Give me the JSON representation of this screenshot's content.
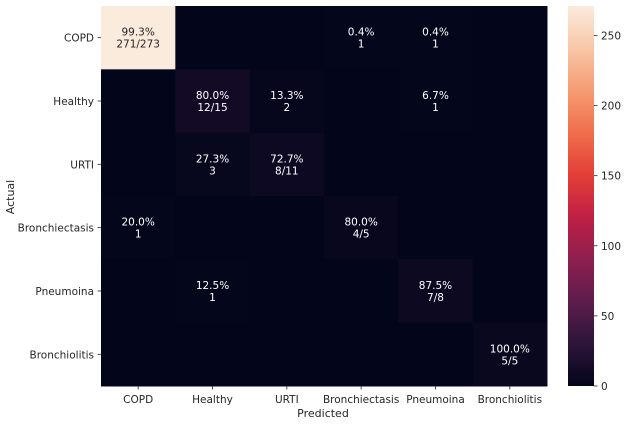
{
  "chart_data": {
    "type": "heatmap",
    "title": "",
    "xlabel": "Predicted",
    "ylabel": "Actual",
    "x_categories": [
      "COPD",
      "Healthy",
      "URTI",
      "Bronchiectasis",
      "Pneumoina",
      "Bronchiolitis"
    ],
    "y_categories": [
      "COPD",
      "Healthy",
      "URTI",
      "Bronchiectasis",
      "Pneumoina",
      "Bronchiolitis"
    ],
    "counts": [
      [
        271,
        0,
        0,
        1,
        1,
        0
      ],
      [
        0,
        12,
        2,
        0,
        1,
        0
      ],
      [
        0,
        3,
        8,
        0,
        0,
        0
      ],
      [
        1,
        0,
        0,
        4,
        0,
        0
      ],
      [
        0,
        1,
        0,
        0,
        7,
        0
      ],
      [
        0,
        0,
        0,
        0,
        0,
        5
      ]
    ],
    "annotations": [
      [
        "99.3%\n271/273",
        "",
        "",
        "0.4%\n1",
        "0.4%\n1",
        ""
      ],
      [
        "",
        "80.0%\n12/15",
        "13.3%\n2",
        "",
        "6.7%\n1",
        ""
      ],
      [
        "",
        "27.3%\n3",
        "72.7%\n8/11",
        "",
        "",
        ""
      ],
      [
        "20.0%\n1",
        "",
        "",
        "80.0%\n4/5",
        "",
        ""
      ],
      [
        "",
        "12.5%\n1",
        "",
        "",
        "87.5%\n7/8",
        ""
      ],
      [
        "",
        "",
        "",
        "",
        "",
        "100.0%\n5/5"
      ]
    ],
    "colorbar": {
      "min": 0,
      "max": 271,
      "ticks": [
        0,
        50,
        100,
        150,
        200,
        250
      ],
      "colormap": "rocket",
      "stops": [
        "#03051a",
        "#2c1539",
        "#5d1d4c",
        "#8e1f4f",
        "#bf1f45",
        "#e33f37",
        "#f06e4c",
        "#f59c73",
        "#f8c7a8",
        "#faebdd"
      ]
    },
    "grid": false,
    "legend": "colorbar-right"
  }
}
